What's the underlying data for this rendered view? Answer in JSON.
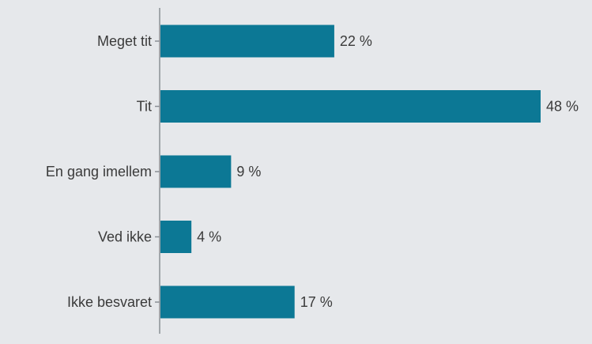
{
  "chart_data": {
    "type": "bar",
    "orientation": "horizontal",
    "title": "",
    "xlabel": "",
    "ylabel": "",
    "categories": [
      "Meget tit",
      "Tit",
      "En gang imellem",
      "Ved ikke",
      "Ikke besvaret"
    ],
    "values": [
      22,
      48,
      9,
      4,
      17
    ],
    "value_labels": [
      "22 %",
      "48 %",
      "9 %",
      "4 %",
      "17 %"
    ],
    "xlim": [
      0,
      48
    ],
    "grid": false,
    "legend": "none",
    "colors": {
      "bar": "#0c7895",
      "axis": "#8a8f95",
      "text": "#3a3a3a",
      "background": "#e6e8eb"
    }
  }
}
